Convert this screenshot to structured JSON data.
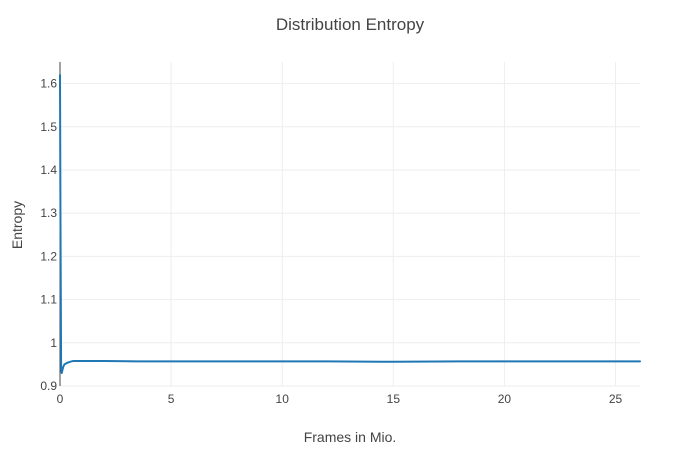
{
  "chart_data": {
    "type": "line",
    "title": "Distribution Entropy",
    "xlabel": "Frames in Mio.",
    "ylabel": "Entropy",
    "xlim": [
      0,
      26.1
    ],
    "ylim": [
      0.9,
      1.65
    ],
    "xticks": [
      0,
      5,
      10,
      15,
      20,
      25
    ],
    "yticks": [
      0.9,
      1,
      1.1,
      1.2,
      1.3,
      1.4,
      1.5,
      1.6
    ],
    "ytick_labels": [
      "0.9",
      "1",
      "1.1",
      "1.2",
      "1.3",
      "1.4",
      "1.5",
      "1.6"
    ],
    "grid": true,
    "series": [
      {
        "color": "#1f77b4",
        "x": [
          0,
          0.02,
          0.05,
          0.08,
          0.1,
          0.15,
          0.2,
          0.3,
          0.45,
          0.6,
          0.8,
          1.0,
          1.4,
          2,
          3.5,
          5,
          8,
          10,
          12,
          15,
          18,
          20,
          22,
          24,
          26.1
        ],
        "y": [
          1.62,
          1.3,
          0.94,
          0.93,
          0.935,
          0.945,
          0.95,
          0.953,
          0.956,
          0.958,
          0.958,
          0.958,
          0.958,
          0.958,
          0.957,
          0.957,
          0.957,
          0.957,
          0.957,
          0.956,
          0.957,
          0.957,
          0.957,
          0.957,
          0.957
        ]
      }
    ]
  }
}
